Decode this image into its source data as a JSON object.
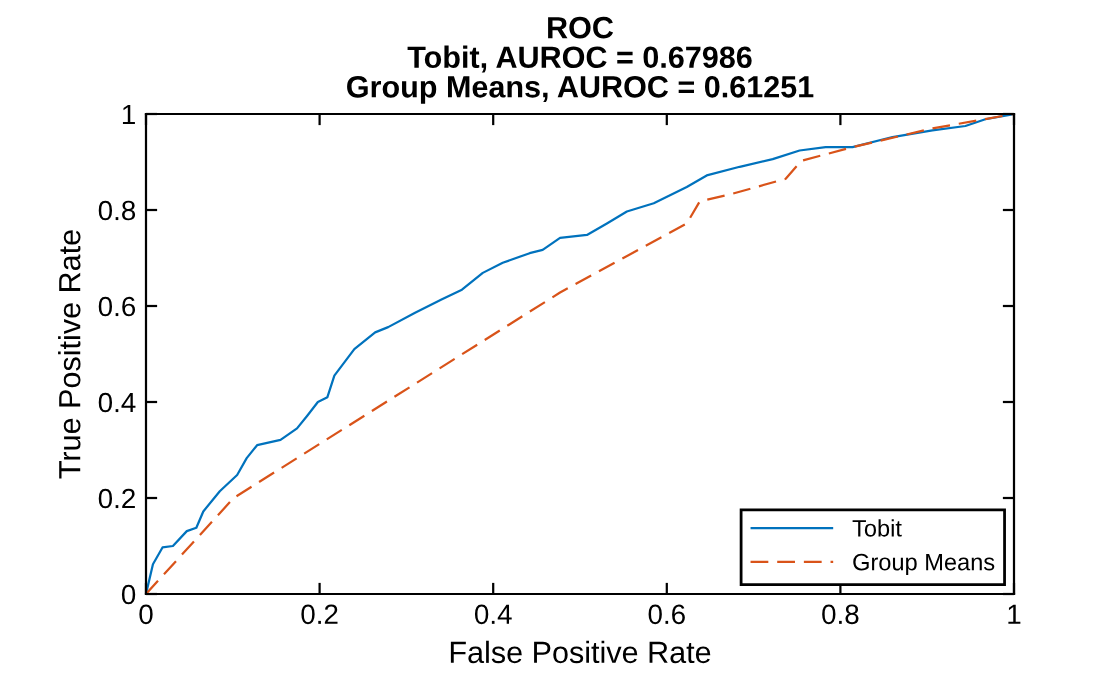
{
  "chart_data": {
    "type": "line",
    "title": "ROC\nTobit, AUROC = 0.67986\nGroup Means, AUROC = 0.61251",
    "xlabel": "False Positive Rate",
    "ylabel": "True Positive Rate",
    "xlim": [
      0,
      1
    ],
    "ylim": [
      0,
      1
    ],
    "xticks": [
      0,
      0.2,
      0.4,
      0.6,
      0.8,
      1
    ],
    "yticks": [
      0,
      0.2,
      0.4,
      0.6,
      0.8,
      1
    ],
    "grid": false,
    "legend": "bottom right",
    "series": [
      {
        "name": "Tobit",
        "color": "#0072bd",
        "line_style": "solid",
        "x": [
          0,
          0.008,
          0.019,
          0.031,
          0.047,
          0.058,
          0.066,
          0.085,
          0.105,
          0.116,
          0.128,
          0.155,
          0.174,
          0.186,
          0.198,
          0.209,
          0.217,
          0.24,
          0.264,
          0.279,
          0.31,
          0.341,
          0.364,
          0.388,
          0.411,
          0.442,
          0.457,
          0.477,
          0.508,
          0.531,
          0.554,
          0.585,
          0.623,
          0.646,
          0.684,
          0.722,
          0.753,
          0.783,
          0.814,
          0.86,
          0.906,
          0.944,
          0.967,
          1
        ],
        "values": [
          0,
          0.062,
          0.097,
          0.1,
          0.131,
          0.138,
          0.172,
          0.214,
          0.248,
          0.283,
          0.31,
          0.321,
          0.345,
          0.372,
          0.4,
          0.41,
          0.455,
          0.51,
          0.545,
          0.556,
          0.586,
          0.614,
          0.634,
          0.669,
          0.69,
          0.71,
          0.717,
          0.742,
          0.748,
          0.772,
          0.797,
          0.814,
          0.848,
          0.872,
          0.89,
          0.906,
          0.924,
          0.931,
          0.931,
          0.952,
          0.966,
          0.975,
          0.989,
          1
        ]
      },
      {
        "name": "Group Means",
        "color": "#d95319",
        "line_style": "dashed",
        "x": [
          0,
          0.101,
          0.477,
          0.623,
          0.638,
          0.676,
          0.737,
          0.749,
          0.756,
          0.814,
          0.906,
          1
        ],
        "values": [
          0,
          0.2,
          0.628,
          0.772,
          0.818,
          0.834,
          0.865,
          0.89,
          0.903,
          0.931,
          0.97,
          1
        ]
      }
    ]
  }
}
